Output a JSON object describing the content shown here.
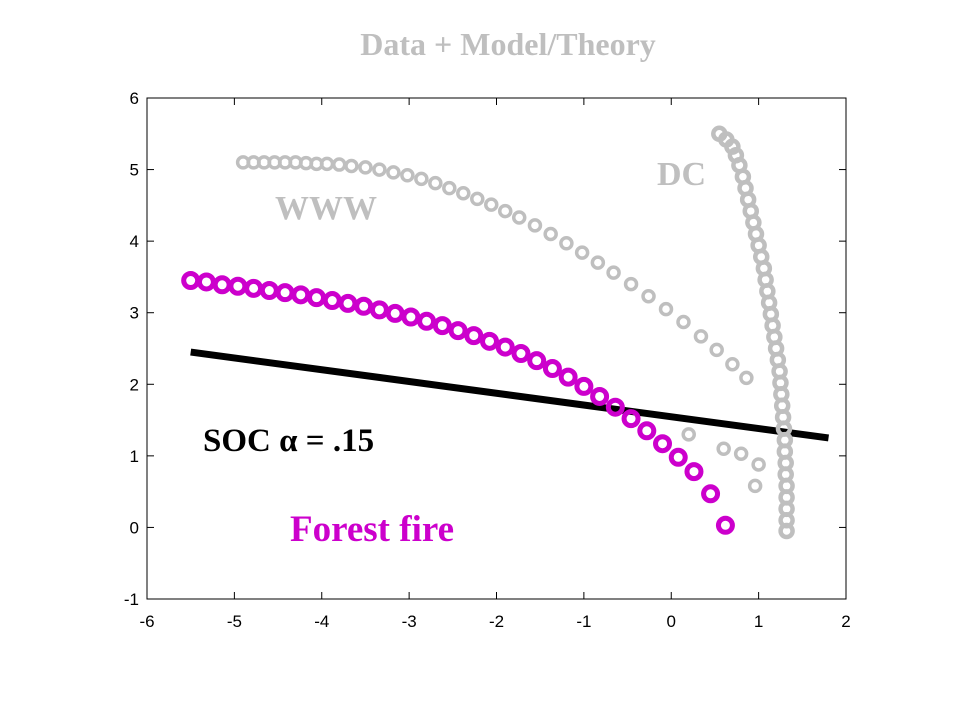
{
  "chart_data": {
    "type": "scatter",
    "title": "Data + Model/Theory",
    "xlabel": "",
    "ylabel": "",
    "xlim": [
      -6,
      2
    ],
    "ylim": [
      -1,
      6
    ],
    "xticks": [
      "-6",
      "-5",
      "-4",
      "-3",
      "-2",
      "-1",
      "0",
      "1",
      "2"
    ],
    "yticks": [
      "-1",
      "0",
      "1",
      "2",
      "3",
      "4",
      "5",
      "6"
    ],
    "grid": false,
    "colors": {
      "forest": "#cc00cc",
      "www": "#bfbfbf",
      "dc": "#bfbfbf",
      "soc": "#000000",
      "title": "#bfbfbf"
    },
    "series": [
      {
        "name": "Forest fire",
        "marker": "circle",
        "points": [
          [
            -5.5,
            3.45
          ],
          [
            -5.32,
            3.43
          ],
          [
            -5.14,
            3.39
          ],
          [
            -4.96,
            3.37
          ],
          [
            -4.78,
            3.34
          ],
          [
            -4.6,
            3.31
          ],
          [
            -4.42,
            3.28
          ],
          [
            -4.24,
            3.25
          ],
          [
            -4.06,
            3.21
          ],
          [
            -3.88,
            3.17
          ],
          [
            -3.7,
            3.13
          ],
          [
            -3.52,
            3.09
          ],
          [
            -3.34,
            3.04
          ],
          [
            -3.16,
            2.99
          ],
          [
            -2.98,
            2.94
          ],
          [
            -2.8,
            2.88
          ],
          [
            -2.62,
            2.82
          ],
          [
            -2.44,
            2.75
          ],
          [
            -2.26,
            2.68
          ],
          [
            -2.08,
            2.6
          ],
          [
            -1.9,
            2.52
          ],
          [
            -1.72,
            2.43
          ],
          [
            -1.54,
            2.33
          ],
          [
            -1.36,
            2.22
          ],
          [
            -1.18,
            2.1
          ],
          [
            -1.0,
            1.97
          ],
          [
            -0.82,
            1.83
          ],
          [
            -0.64,
            1.68
          ],
          [
            -0.46,
            1.52
          ],
          [
            -0.28,
            1.35
          ],
          [
            -0.1,
            1.17
          ],
          [
            0.08,
            0.98
          ],
          [
            0.26,
            0.78
          ],
          [
            0.45,
            0.47
          ],
          [
            0.62,
            0.03
          ]
        ]
      },
      {
        "name": "WWW",
        "marker": "circle",
        "points": [
          [
            -4.9,
            5.1
          ],
          [
            -4.78,
            5.1
          ],
          [
            -4.66,
            5.1
          ],
          [
            -4.54,
            5.1
          ],
          [
            -4.42,
            5.1
          ],
          [
            -4.3,
            5.1
          ],
          [
            -4.18,
            5.09
          ],
          [
            -4.06,
            5.08
          ],
          [
            -3.94,
            5.08
          ],
          [
            -3.8,
            5.07
          ],
          [
            -3.66,
            5.05
          ],
          [
            -3.5,
            5.03
          ],
          [
            -3.34,
            5.0
          ],
          [
            -3.18,
            4.96
          ],
          [
            -3.02,
            4.92
          ],
          [
            -2.86,
            4.87
          ],
          [
            -2.7,
            4.81
          ],
          [
            -2.54,
            4.74
          ],
          [
            -2.38,
            4.67
          ],
          [
            -2.22,
            4.59
          ],
          [
            -2.06,
            4.51
          ],
          [
            -1.9,
            4.42
          ],
          [
            -1.74,
            4.33
          ],
          [
            -1.56,
            4.22
          ],
          [
            -1.38,
            4.1
          ],
          [
            -1.2,
            3.97
          ],
          [
            -1.02,
            3.84
          ],
          [
            -0.84,
            3.7
          ],
          [
            -0.66,
            3.56
          ],
          [
            -0.46,
            3.4
          ],
          [
            -0.26,
            3.23
          ],
          [
            -0.06,
            3.05
          ],
          [
            0.14,
            2.87
          ],
          [
            0.34,
            2.67
          ],
          [
            0.52,
            2.48
          ],
          [
            0.7,
            2.28
          ],
          [
            0.86,
            2.09
          ],
          [
            0.6,
            1.1
          ],
          [
            0.8,
            1.03
          ],
          [
            1.0,
            0.88
          ],
          [
            0.96,
            0.58
          ],
          [
            0.2,
            1.3
          ]
        ]
      },
      {
        "name": "DC",
        "marker": "circle",
        "points": [
          [
            0.55,
            5.5
          ],
          [
            0.63,
            5.42
          ],
          [
            0.7,
            5.32
          ],
          [
            0.74,
            5.2
          ],
          [
            0.78,
            5.06
          ],
          [
            0.82,
            4.9
          ],
          [
            0.85,
            4.74
          ],
          [
            0.88,
            4.58
          ],
          [
            0.91,
            4.42
          ],
          [
            0.94,
            4.26
          ],
          [
            0.97,
            4.1
          ],
          [
            1.0,
            3.94
          ],
          [
            1.03,
            3.78
          ],
          [
            1.06,
            3.62
          ],
          [
            1.08,
            3.46
          ],
          [
            1.1,
            3.3
          ],
          [
            1.12,
            3.14
          ],
          [
            1.14,
            2.98
          ],
          [
            1.16,
            2.82
          ],
          [
            1.18,
            2.66
          ],
          [
            1.2,
            2.5
          ],
          [
            1.22,
            2.34
          ],
          [
            1.24,
            2.18
          ],
          [
            1.25,
            2.02
          ],
          [
            1.26,
            1.86
          ],
          [
            1.27,
            1.7
          ],
          [
            1.28,
            1.54
          ],
          [
            1.29,
            1.38
          ],
          [
            1.3,
            1.22
          ],
          [
            1.3,
            1.06
          ],
          [
            1.31,
            0.9
          ],
          [
            1.31,
            0.74
          ],
          [
            1.32,
            0.58
          ],
          [
            1.32,
            0.42
          ],
          [
            1.32,
            0.26
          ],
          [
            1.32,
            0.1
          ],
          [
            1.32,
            -0.05
          ]
        ]
      },
      {
        "name": "SOC",
        "type": "line",
        "points": [
          [
            -5.5,
            2.45
          ],
          [
            1.8,
            1.25
          ]
        ]
      }
    ],
    "annotations": [
      {
        "key": "forest",
        "text": "Forest fire"
      },
      {
        "key": "www",
        "text": "WWW"
      },
      {
        "key": "dc",
        "text": "DC"
      },
      {
        "key": "soc",
        "text": "SOC α = .15"
      }
    ]
  }
}
